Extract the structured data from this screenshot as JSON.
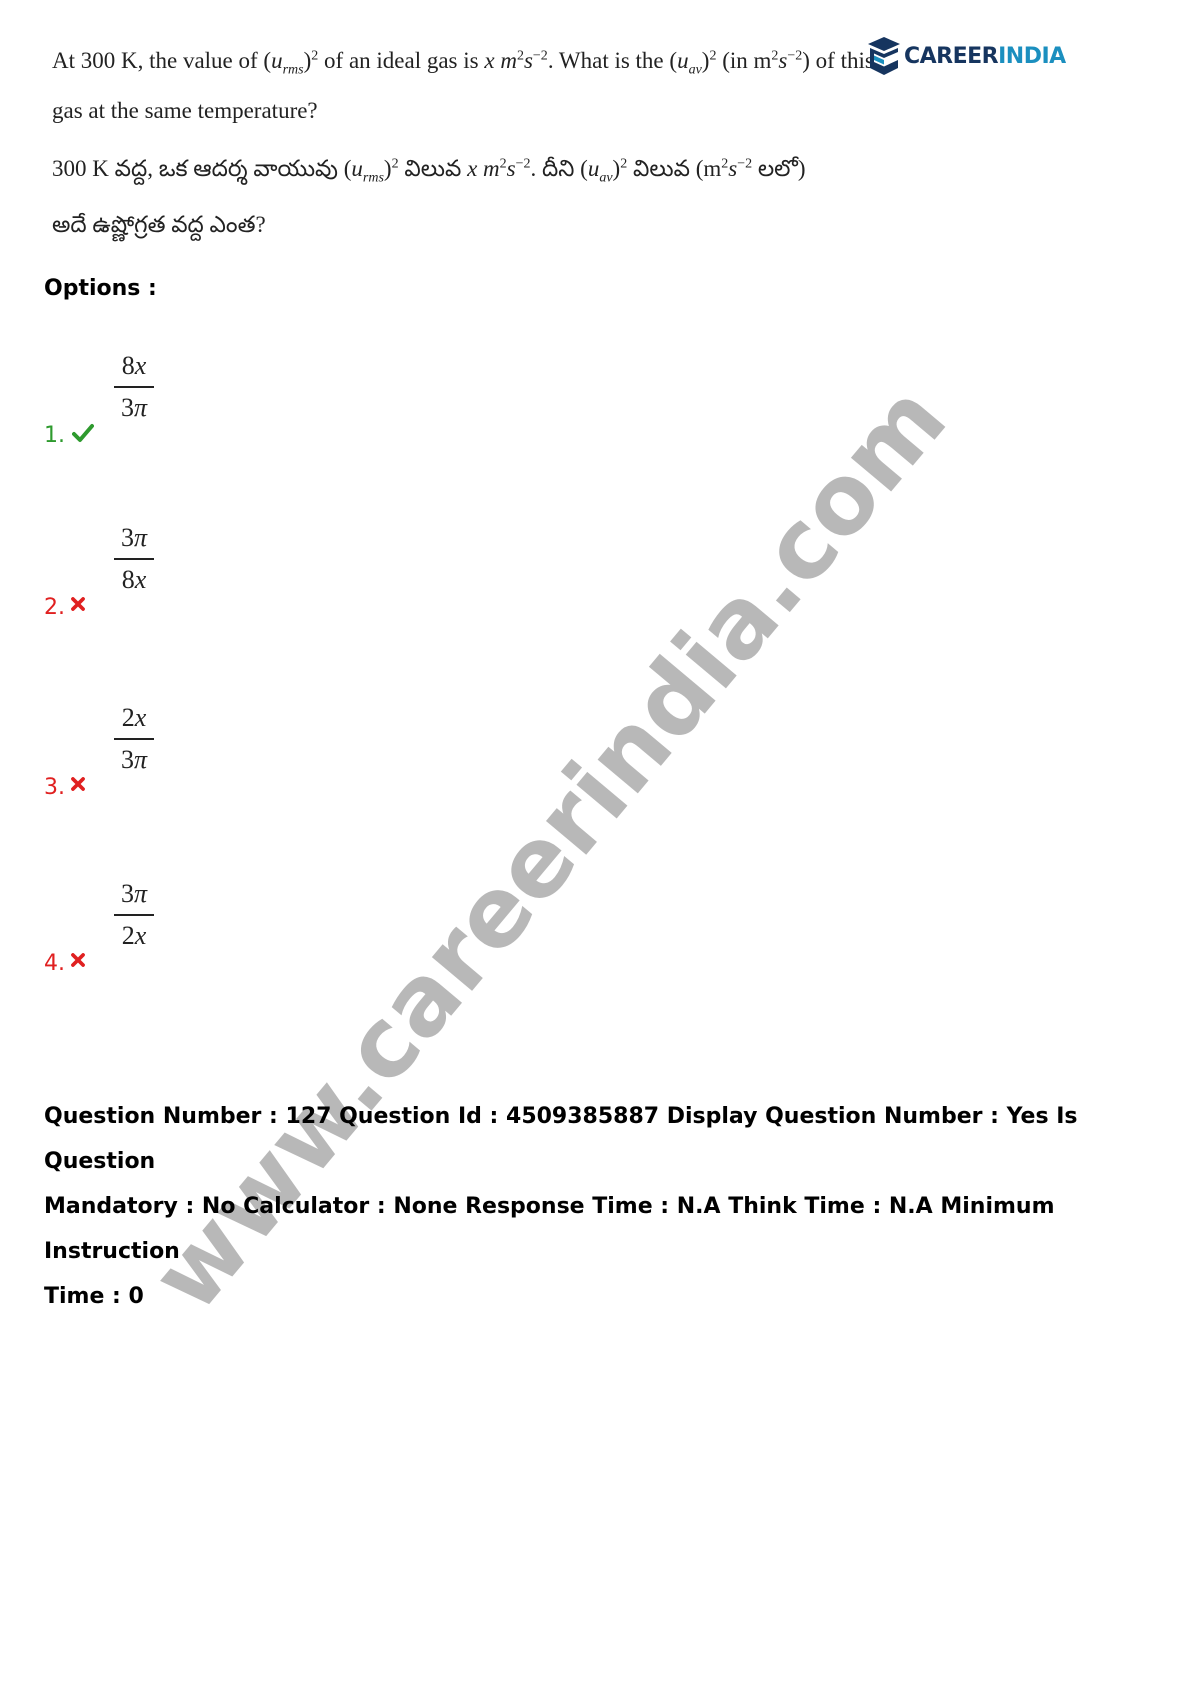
{
  "question": {
    "english": {
      "line1_part1": "At 300 K, the value of (",
      "line1_var1": "u",
      "line1_sub1": "rms",
      "line1_part2": ")",
      "line1_sup1": "2",
      "line1_part3": " of an ideal gas is ",
      "line1_x": "x",
      "line1_part4": " m",
      "line1_sup2": "2",
      "line1_part5": "s",
      "line1_sup3": "−2",
      "line1_part6": ". What is the (",
      "line1_var2": "u",
      "line1_sub2": "av",
      "line1_part7": ")",
      "line1_sup4": "2",
      "line1_part8": " (in m",
      "line1_sup5": "2",
      "line1_part9": "s",
      "line1_sup6": "−2",
      "line1_part10": ") of this",
      "line2": "gas at the same temperature?"
    },
    "telugu": {
      "line1_part1": "300 K వద్ద, ఒక ఆదర్శ వాయువు (",
      "line1_var1": "u",
      "line1_sub1": "rms",
      "line1_part2": ")",
      "line1_sup1": "2",
      "line1_part3": " విలువ ",
      "line1_x": "x",
      "line1_part4": " m",
      "line1_sup2": "2",
      "line1_part5": "s",
      "line1_sup3": "−2",
      "line1_part6": ". దీని (",
      "line1_var2": "u",
      "line1_sub2": "av",
      "line1_part7": ")",
      "line1_sup4": "2",
      "line1_part8": " విలువ (m",
      "line1_sup5": "2",
      "line1_part9": "s",
      "line1_sup6": "−2",
      "line1_part10": " లలో)",
      "line2": "అదే ఉష్ణోగ్రత వద్ద ఎంత?"
    }
  },
  "logo": {
    "text_main": "CAREER",
    "text_accent": "INDIA",
    "colors": {
      "main": "#16355f",
      "accent": "#1b8fbf"
    }
  },
  "options_label": "Options :",
  "options": [
    {
      "number": "1.",
      "status": "correct",
      "icon": "check-icon",
      "numerator_coef": "8",
      "numerator_var": "x",
      "denominator_coef": "3",
      "denominator_var": "π"
    },
    {
      "number": "2.",
      "status": "wrong",
      "icon": "cross-icon",
      "numerator_coef": "3",
      "numerator_var": "π",
      "denominator_coef": "8",
      "denominator_var": "x"
    },
    {
      "number": "3.",
      "status": "wrong",
      "icon": "cross-icon",
      "numerator_coef": "2",
      "numerator_var": "x",
      "denominator_coef": "3",
      "denominator_var": "π"
    },
    {
      "number": "4.",
      "status": "wrong",
      "icon": "cross-icon",
      "numerator_coef": "3",
      "numerator_var": "π",
      "denominator_coef": "2",
      "denominator_var": "x"
    }
  ],
  "meta": {
    "line1": "Question Number : 127 Question Id : 4509385887 Display Question Number : Yes Is Question",
    "line2": "Mandatory : No Calculator : None Response Time : N.A Think Time : N.A Minimum Instruction",
    "line3": "Time : 0"
  },
  "watermark": "www.careerindia.com",
  "colors": {
    "correct": "#2e9a2e",
    "wrong": "#e02020"
  }
}
